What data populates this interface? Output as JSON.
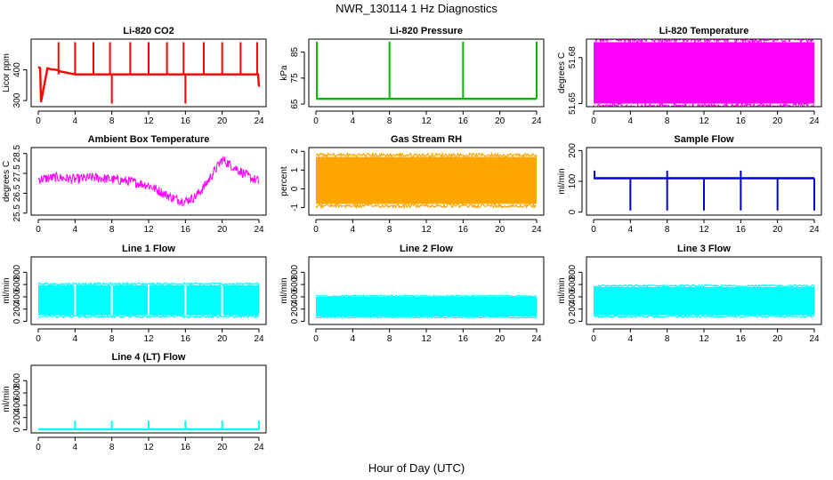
{
  "figure": {
    "title": "NWR_130114  1 Hz Diagnostics",
    "xlabel": "Hour of Day (UTC)"
  },
  "chart_data": [
    {
      "type": "line",
      "title": "Li-820 CO2",
      "ylabel": "Licor ppm",
      "color": "#ff0000",
      "xlim": [
        0,
        24
      ],
      "x_ticks": [
        0,
        4,
        8,
        12,
        16,
        20,
        24
      ],
      "ylim": [
        280,
        500
      ],
      "y_ticks": [
        300,
        400
      ],
      "series": [
        {
          "x": [
            0,
            0.2,
            0.3,
            1.0,
            1.4,
            2.0,
            2.4,
            4.0,
            6.0,
            8.0,
            10.0,
            12.0,
            14.0,
            16.0,
            18.0,
            20.0,
            22.0,
            23.9,
            24.0
          ],
          "y": [
            410,
            405,
            295,
            405,
            402,
            400,
            395,
            385,
            385,
            385,
            385,
            385,
            385,
            385,
            385,
            385,
            385,
            385,
            345
          ]
        }
      ],
      "spikes": {
        "x": [
          2.2,
          4.0,
          6.0,
          7.8,
          10.0,
          12.0,
          14.0,
          15.8,
          18.0,
          20.0,
          22.0,
          23.8
        ],
        "high": 490
      },
      "dips": {
        "x": [
          8.0,
          16.0
        ],
        "low": 290
      }
    },
    {
      "type": "line",
      "title": "Li-820 Pressure",
      "ylabel": "kPa",
      "color": "#00bb00",
      "xlim": [
        0,
        24
      ],
      "x_ticks": [
        0,
        4,
        8,
        12,
        16,
        20,
        24
      ],
      "ylim": [
        64,
        90
      ],
      "y_ticks": [
        65,
        75,
        85
      ],
      "series": [
        {
          "x": [
            0,
            0.3,
            24
          ],
          "y": [
            67,
            67,
            67
          ]
        }
      ],
      "spikes": {
        "x": [
          0.1,
          8.0,
          16.0,
          24.0
        ],
        "high": 89
      }
    },
    {
      "type": "area",
      "title": "Li-820 Temperature",
      "ylabel": "degrees C",
      "color": "#ff00ff",
      "xlim": [
        0,
        24
      ],
      "x_ticks": [
        0,
        4,
        8,
        12,
        16,
        20,
        24
      ],
      "ylim": [
        51.648,
        51.692
      ],
      "y_ticks": [
        51.65,
        51.68
      ],
      "band": {
        "low": 51.65,
        "high": 51.69
      },
      "band_x_ranges": [
        [
          0,
          24
        ]
      ]
    },
    {
      "type": "line",
      "title": "Ambient Box Temperature",
      "ylabel": "degrees C",
      "color": "#ff00ff",
      "xlim": [
        0,
        24
      ],
      "x_ticks": [
        0,
        4,
        8,
        12,
        16,
        20,
        24
      ],
      "ylim": [
        25.4,
        28.8
      ],
      "y_ticks": [
        25.5,
        26.5,
        27.5,
        28.5
      ],
      "series": [
        {
          "x": [
            0,
            2,
            4,
            6,
            8,
            10,
            12,
            14,
            15,
            16,
            17,
            18,
            19,
            20,
            21,
            22,
            23,
            24
          ],
          "y": [
            27.2,
            27.3,
            27.2,
            27.3,
            27.2,
            27.1,
            26.9,
            26.4,
            26.2,
            26.1,
            26.3,
            26.8,
            27.5,
            28.2,
            27.9,
            27.6,
            27.3,
            27.1
          ]
        }
      ],
      "noise_amplitude": 0.25
    },
    {
      "type": "area",
      "title": "Gas Stream RH",
      "ylabel": "percent",
      "color": "#ffa500",
      "xlim": [
        0,
        24
      ],
      "x_ticks": [
        0,
        4,
        8,
        12,
        16,
        20,
        24
      ],
      "ylim": [
        -1.4,
        2.2
      ],
      "y_ticks": [
        -1.0,
        0.0,
        1.0,
        2.0
      ],
      "band": {
        "low": -0.8,
        "high": 1.7
      },
      "band_x_ranges": [
        [
          0,
          24
        ]
      ]
    },
    {
      "type": "line",
      "title": "Sample Flow",
      "ylabel": "ml/min",
      "color": "#0000dd",
      "xlim": [
        0,
        24
      ],
      "x_ticks": [
        0,
        4,
        8,
        12,
        16,
        20,
        24
      ],
      "ylim": [
        -10,
        210
      ],
      "y_ticks": [
        0,
        100,
        200
      ],
      "series": [
        {
          "x": [
            0,
            24
          ],
          "y": [
            110,
            110
          ]
        }
      ],
      "spikes": {
        "x": [
          0.1,
          8.0,
          16.0
        ],
        "high": 135
      },
      "dips": {
        "x": [
          4.0,
          8.0,
          12.0,
          16.0,
          20.0,
          24.0
        ],
        "low": 5
      }
    },
    {
      "type": "area",
      "title": "Line 1 Flow",
      "ylabel": "ml/min",
      "color": "#00ffff",
      "xlim": [
        0,
        24
      ],
      "x_ticks": [
        0,
        4,
        8,
        12,
        16,
        20,
        24
      ],
      "ylim": [
        -50,
        1050
      ],
      "y_ticks": [
        0,
        200,
        400,
        600,
        800
      ],
      "band": {
        "low": 100,
        "high": 590
      },
      "band_x_ranges": [
        [
          0,
          3.9
        ],
        [
          4.1,
          7.9
        ],
        [
          8.1,
          11.9
        ],
        [
          12.1,
          15.9
        ],
        [
          16.1,
          19.9
        ],
        [
          20.1,
          24
        ]
      ]
    },
    {
      "type": "area",
      "title": "Line 2 Flow",
      "ylabel": "ml/min",
      "color": "#00ffff",
      "xlim": [
        0,
        24
      ],
      "x_ticks": [
        0,
        4,
        8,
        12,
        16,
        20,
        24
      ],
      "ylim": [
        -50,
        1050
      ],
      "y_ticks": [
        0,
        200,
        400,
        600,
        800
      ],
      "band": {
        "low": 80,
        "high": 400
      },
      "band_x_ranges": [
        [
          0,
          24
        ]
      ]
    },
    {
      "type": "area",
      "title": "Line 3 Flow",
      "ylabel": "ml/min",
      "color": "#00ffff",
      "xlim": [
        0,
        24
      ],
      "x_ticks": [
        0,
        4,
        8,
        12,
        16,
        20,
        24
      ],
      "ylim": [
        -50,
        1050
      ],
      "y_ticks": [
        0,
        200,
        400,
        600,
        800
      ],
      "band": {
        "low": 100,
        "high": 560
      },
      "band_x_ranges": [
        [
          0,
          24
        ]
      ]
    },
    {
      "type": "line",
      "title": "Line 4 (LT) Flow",
      "ylabel": "ml/min",
      "color": "#00ffff",
      "xlim": [
        0,
        24
      ],
      "x_ticks": [
        0,
        4,
        8,
        12,
        16,
        20,
        24
      ],
      "ylim": [
        -50,
        1050
      ],
      "y_ticks": [
        0,
        200,
        400,
        600,
        800
      ],
      "series": [
        {
          "x": [
            0,
            24
          ],
          "y": [
            10,
            10
          ]
        }
      ],
      "spikes": {
        "x": [
          4.0,
          8.0,
          12.0,
          16.0,
          20.0,
          24.0
        ],
        "high": 150
      }
    }
  ]
}
